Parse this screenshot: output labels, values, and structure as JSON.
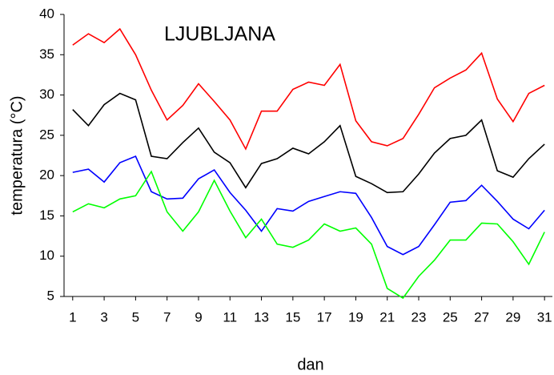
{
  "chart_data": {
    "type": "line",
    "title": "LJUBLJANA",
    "x_label": "dan",
    "y_label": "temperatura (°C)",
    "x": [
      1,
      2,
      3,
      4,
      5,
      6,
      7,
      8,
      9,
      10,
      11,
      12,
      13,
      14,
      15,
      16,
      17,
      18,
      19,
      20,
      21,
      22,
      23,
      24,
      25,
      26,
      27,
      28,
      29,
      30,
      31
    ],
    "xlim": [
      0.45,
      31.5
    ],
    "xticks": [
      1,
      3,
      5,
      7,
      9,
      11,
      13,
      15,
      17,
      19,
      21,
      23,
      25,
      27,
      29,
      31
    ],
    "ylim": [
      5,
      40
    ],
    "yticks": [
      5,
      10,
      15,
      20,
      25,
      30,
      35,
      40
    ],
    "series": [
      {
        "color": "#ff0000",
        "values": [
          36.2,
          37.6,
          36.5,
          38.2,
          35.0,
          30.6,
          26.9,
          28.7,
          31.4,
          29.2,
          26.9,
          23.3,
          28.0,
          28.0,
          30.7,
          31.6,
          31.2,
          33.8,
          26.8,
          24.2,
          23.7,
          24.6,
          27.6,
          30.9,
          32.1,
          33.1,
          35.2,
          29.5,
          26.7,
          30.2,
          31.2
        ]
      },
      {
        "color": "#000000",
        "values": [
          28.2,
          26.2,
          28.8,
          30.2,
          29.4,
          22.4,
          22.1,
          24.1,
          25.9,
          22.9,
          21.6,
          18.5,
          21.5,
          22.1,
          23.4,
          22.7,
          24.2,
          26.2,
          19.9,
          19.0,
          17.9,
          18.0,
          20.2,
          22.8,
          24.6,
          25.0,
          26.9,
          20.6,
          19.8,
          22.1,
          23.9
        ]
      },
      {
        "color": "#0000ff",
        "values": [
          20.4,
          20.8,
          19.2,
          21.6,
          22.4,
          18.0,
          17.1,
          17.2,
          19.6,
          20.7,
          17.9,
          15.7,
          13.1,
          15.9,
          15.6,
          16.8,
          17.4,
          18.0,
          17.8,
          14.8,
          11.2,
          10.2,
          11.2,
          13.9,
          16.7,
          16.9,
          18.8,
          16.8,
          14.6,
          13.4,
          15.7
        ]
      },
      {
        "color": "#00ff00",
        "values": [
          15.5,
          16.5,
          16.0,
          17.1,
          17.5,
          20.5,
          15.5,
          13.1,
          15.5,
          19.4,
          15.6,
          12.3,
          14.6,
          11.5,
          11.1,
          12.0,
          14.0,
          13.1,
          13.5,
          11.5,
          6.0,
          4.8,
          7.5,
          9.5,
          12.0,
          12.0,
          14.1,
          14.0,
          11.8,
          9.0,
          13.0
        ]
      }
    ]
  }
}
